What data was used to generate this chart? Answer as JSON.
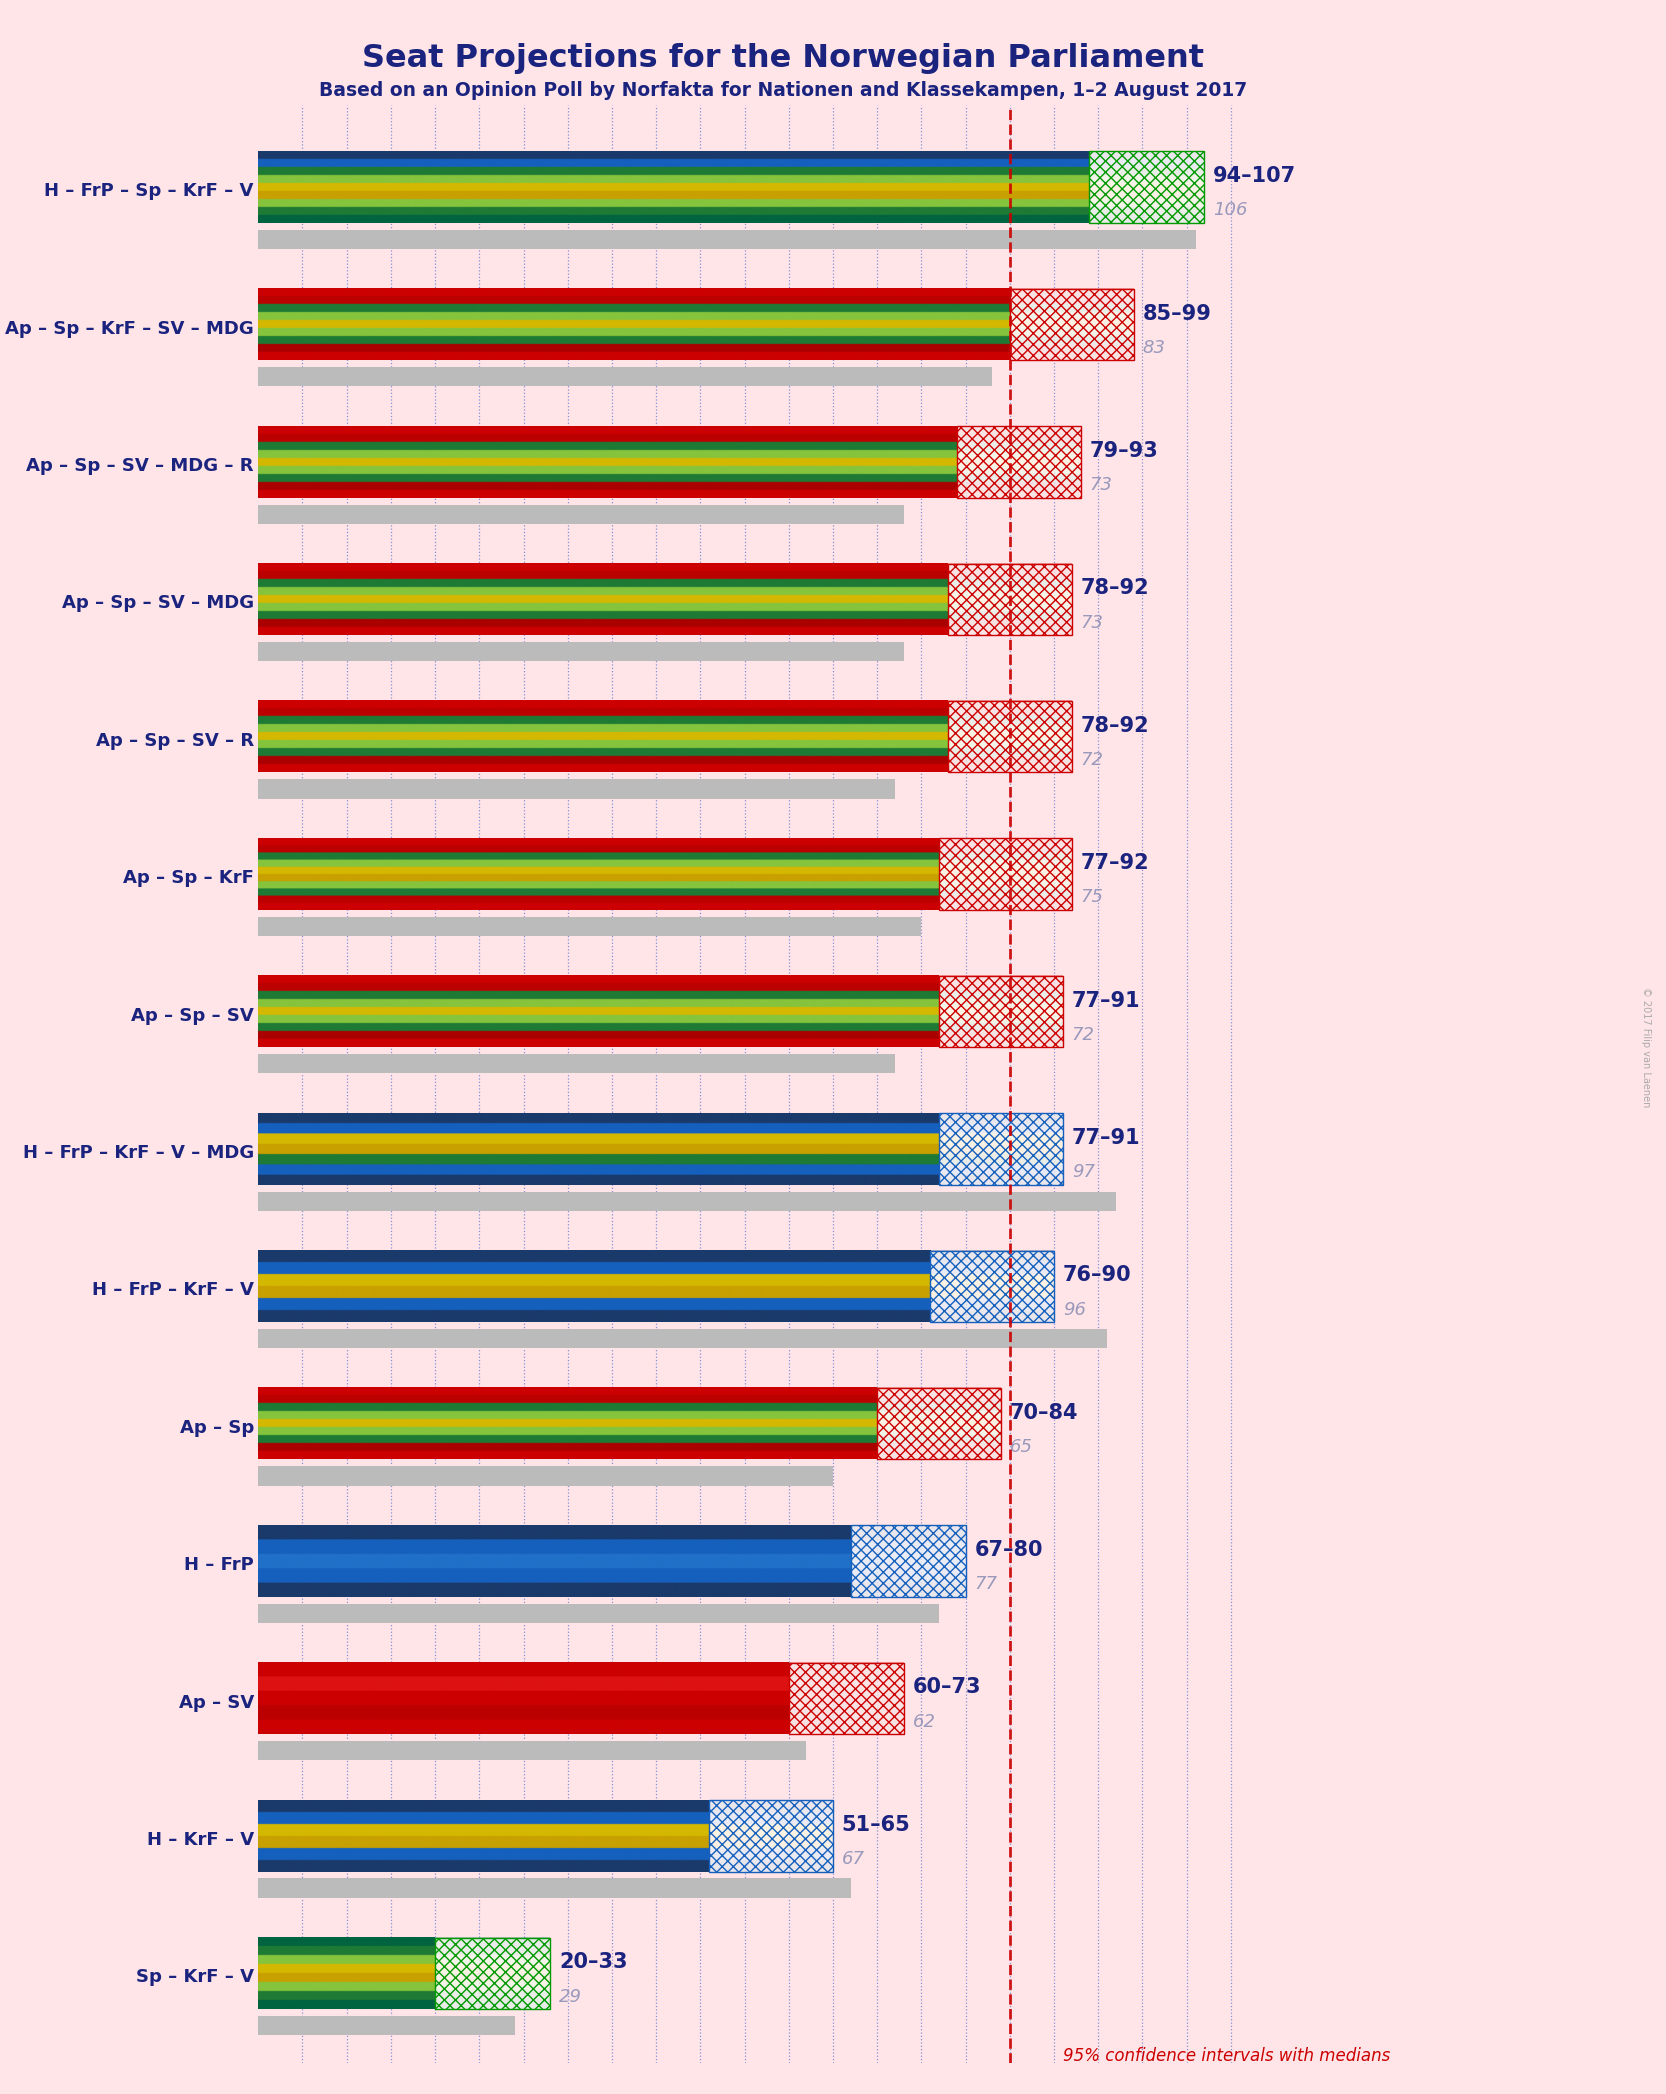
{
  "title": "Seat Projections for the Norwegian Parliament",
  "subtitle": "Based on an Opinion Poll by Norfakta for Nationen and Klassekampen, 1–2 August 2017",
  "copyright": "© 2017 Filip van Laenen",
  "background_color": "#FFE4E8",
  "majority_line": 85,
  "x_max": 110,
  "note": "95% confidence intervals with medians",
  "tick_interval": 5,
  "coalitions": [
    {
      "label": "H – FrP – Sp – KrF – V",
      "ci_low": 94,
      "ci_high": 107,
      "median": 106,
      "party_colors": [
        "#1560BD",
        "#003F87",
        "#009900",
        "#FFCC00",
        "#009900",
        "#006400"
      ],
      "hatch_color": "#009900",
      "hatch_type": "blue_green"
    },
    {
      "label": "Ap – Sp – KrF – SV – MDG",
      "ci_low": 85,
      "ci_high": 99,
      "median": 83,
      "party_colors": [
        "#CC0000",
        "#AA0000",
        "#009900",
        "#FFCC00",
        "#CC0000",
        "#009900"
      ],
      "hatch_color": "#CC0000",
      "hatch_type": "red_green"
    },
    {
      "label": "Ap – Sp – SV – MDG – R",
      "ci_low": 79,
      "ci_high": 93,
      "median": 73,
      "party_colors": [
        "#CC0000",
        "#009900",
        "#CC0000",
        "#009900",
        "#CC0000"
      ],
      "hatch_color": "#CC0000",
      "hatch_type": "red_green"
    },
    {
      "label": "Ap – Sp – SV – MDG",
      "ci_low": 78,
      "ci_high": 92,
      "median": 73,
      "party_colors": [
        "#CC0000",
        "#009900",
        "#CC0000",
        "#009900",
        "#CC0000"
      ],
      "hatch_color": "#CC0000",
      "hatch_type": "red_green"
    },
    {
      "label": "Ap – Sp – SV – R",
      "ci_low": 78,
      "ci_high": 92,
      "median": 72,
      "party_colors": [
        "#CC0000",
        "#009900",
        "#CC0000",
        "#009900",
        "#CC0000"
      ],
      "hatch_color": "#CC0000",
      "hatch_type": "red_green"
    },
    {
      "label": "Ap – Sp – KrF",
      "ci_low": 77,
      "ci_high": 92,
      "median": 75,
      "party_colors": [
        "#CC0000",
        "#009900",
        "#FFCC00",
        "#CC0000",
        "#009900"
      ],
      "hatch_color": "#CC0000",
      "hatch_type": "red_green_yellow"
    },
    {
      "label": "Ap – Sp – SV",
      "ci_low": 77,
      "ci_high": 91,
      "median": 72,
      "party_colors": [
        "#CC0000",
        "#009900",
        "#CC0000",
        "#009900",
        "#CC0000"
      ],
      "hatch_color": "#CC0000",
      "hatch_type": "red_green"
    },
    {
      "label": "H – FrP – KrF – V – MDG",
      "ci_low": 77,
      "ci_high": 91,
      "median": 97,
      "party_colors": [
        "#1560BD",
        "#003F87",
        "#FFCC00",
        "#009900",
        "#1560BD"
      ],
      "hatch_color": "#1560BD",
      "hatch_type": "blue_yellow_green"
    },
    {
      "label": "H – FrP – KrF – V",
      "ci_low": 76,
      "ci_high": 90,
      "median": 96,
      "party_colors": [
        "#1560BD",
        "#003F87",
        "#FFCC00",
        "#1560BD",
        "#003F87"
      ],
      "hatch_color": "#1560BD",
      "hatch_type": "blue_yellow"
    },
    {
      "label": "Ap – Sp",
      "ci_low": 70,
      "ci_high": 84,
      "median": 65,
      "party_colors": [
        "#CC0000",
        "#AA0000",
        "#009900",
        "#CC0000",
        "#009900"
      ],
      "hatch_color": "#CC0000",
      "hatch_type": "red_green"
    },
    {
      "label": "H – FrP",
      "ci_low": 67,
      "ci_high": 80,
      "median": 77,
      "party_colors": [
        "#1560BD",
        "#003F87",
        "#1560BD",
        "#003F87",
        "#1560BD"
      ],
      "hatch_color": "#1560BD",
      "hatch_type": "blue"
    },
    {
      "label": "Ap – SV",
      "ci_low": 60,
      "ci_high": 73,
      "median": 62,
      "party_colors": [
        "#CC0000",
        "#AA0000",
        "#CC0000",
        "#AA0000",
        "#CC0000"
      ],
      "hatch_color": "#CC0000",
      "hatch_type": "red"
    },
    {
      "label": "H – KrF – V",
      "ci_low": 51,
      "ci_high": 65,
      "median": 67,
      "party_colors": [
        "#1560BD",
        "#003F87",
        "#FFCC00",
        "#009900",
        "#1560BD"
      ],
      "hatch_color": "#1560BD",
      "hatch_type": "blue_yellow_green"
    },
    {
      "label": "Sp – KrF – V",
      "ci_low": 20,
      "ci_high": 33,
      "median": 29,
      "party_colors": [
        "#009900",
        "#006400",
        "#FFCC00",
        "#009900",
        "#006400"
      ],
      "hatch_color": "#009900",
      "hatch_type": "green_yellow"
    }
  ]
}
